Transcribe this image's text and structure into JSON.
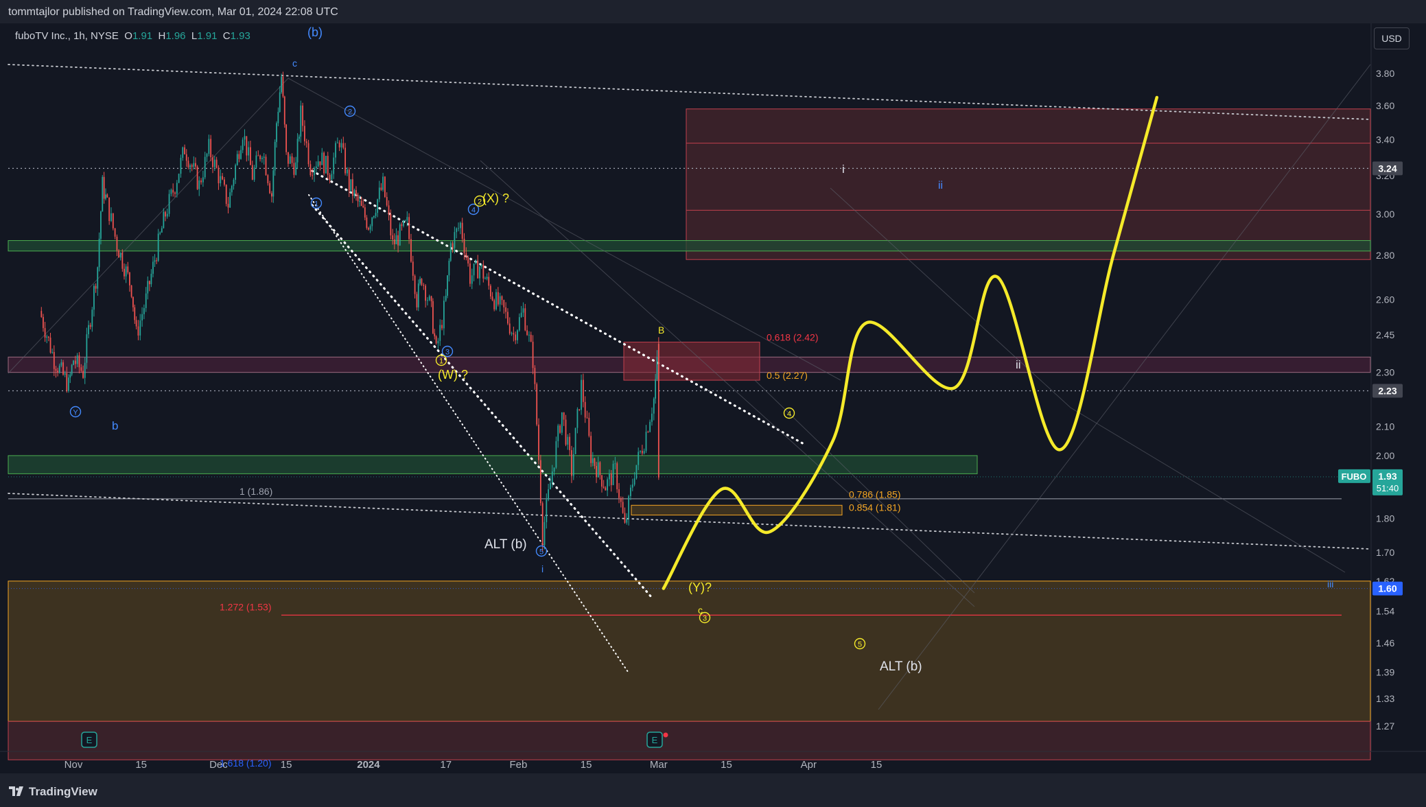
{
  "header": {
    "publisher_line": "tommtajlor published on TradingView.com, Mar 01, 2024 22:08 UTC"
  },
  "footer": {
    "brand": "TradingView"
  },
  "legend": {
    "symbol_line": "fuboTV Inc., 1h, NYSE",
    "o_label": "O",
    "o_value": "1.91",
    "h_label": "H",
    "h_value": "1.96",
    "l_label": "L",
    "l_value": "1.91",
    "c_label": "C",
    "c_value": "1.93"
  },
  "price_scale": {
    "currency": "USD"
  },
  "colors": {
    "background": "#131722",
    "up": "#26a69a",
    "down": "#ef5350",
    "wave_yellow": "#f5ea2a",
    "wave_blue": "#2962ff",
    "fib_red": "#f23645",
    "fib_orange": "#f57c00",
    "zone_green": "#4caf50",
    "zone_red": "#9c1f3a",
    "zone_orange": "#8a5a1c",
    "label_white": "#ffffff"
  },
  "chart_data": {
    "type": "candlestick",
    "interval": "1h",
    "symbol": "FUBO",
    "exchange": "NYSE",
    "x_tick_labels": [
      "Nov",
      "15",
      "Dec",
      "15",
      "2024",
      "17",
      "Feb",
      "15",
      "Mar",
      "15",
      "Apr",
      "15"
    ],
    "x_tick_dates": [
      "2023-11-01",
      "2023-11-15",
      "2023-12-01",
      "2023-12-15",
      "2024-01-01",
      "2024-01-17",
      "2024-02-01",
      "2024-02-15",
      "2024-03-01",
      "2024-03-15",
      "2024-04-01",
      "2024-04-15"
    ],
    "y_tick_labels": [
      "3.80",
      "3.60",
      "3.40",
      "3.20",
      "3.00",
      "2.80",
      "2.60",
      "2.45",
      "2.30",
      "2.10",
      "2.00",
      "1.80",
      "1.70",
      "1.62",
      "1.54",
      "1.46",
      "1.39",
      "1.33",
      "1.27"
    ],
    "y_axis_scale": "log",
    "y_range": [
      1.21,
      4.0
    ],
    "last_price": {
      "symbol_tag": "FUBO",
      "value": "1.93",
      "countdown": "51:40"
    },
    "price_markers": [
      {
        "value": "3.24",
        "style": "gray"
      },
      {
        "value": "2.23",
        "style": "gray"
      },
      {
        "value": "1.60",
        "style": "blue"
      }
    ],
    "price_path": [
      {
        "date": "2023-10-25",
        "price": 2.55
      },
      {
        "date": "2023-10-28",
        "price": 2.35
      },
      {
        "date": "2023-10-31",
        "price": 2.25
      },
      {
        "date": "2023-11-01",
        "price": 2.35
      },
      {
        "date": "2023-11-03",
        "price": 2.3
      },
      {
        "date": "2023-11-06",
        "price": 2.75
      },
      {
        "date": "2023-11-07",
        "price": 3.15
      },
      {
        "date": "2023-11-08",
        "price": 3.05
      },
      {
        "date": "2023-11-10",
        "price": 2.85
      },
      {
        "date": "2023-11-13",
        "price": 2.65
      },
      {
        "date": "2023-11-14",
        "price": 2.45
      },
      {
        "date": "2023-11-16",
        "price": 2.6
      },
      {
        "date": "2023-11-20",
        "price": 3.0
      },
      {
        "date": "2023-11-22",
        "price": 3.15
      },
      {
        "date": "2023-11-24",
        "price": 3.35
      },
      {
        "date": "2023-11-27",
        "price": 3.15
      },
      {
        "date": "2023-11-29",
        "price": 3.35
      },
      {
        "date": "2023-12-01",
        "price": 3.2
      },
      {
        "date": "2023-12-03",
        "price": 3.05
      },
      {
        "date": "2023-12-06",
        "price": 3.45
      },
      {
        "date": "2023-12-08",
        "price": 3.2
      },
      {
        "date": "2023-12-10",
        "price": 3.35
      },
      {
        "date": "2023-12-12",
        "price": 3.1
      },
      {
        "date": "2023-12-13",
        "price": 3.5
      },
      {
        "date": "2023-12-14",
        "price": 3.78
      },
      {
        "date": "2023-12-15",
        "price": 3.3
      },
      {
        "date": "2023-12-17",
        "price": 3.25
      },
      {
        "date": "2023-12-18",
        "price": 3.55
      },
      {
        "date": "2023-12-20",
        "price": 3.25
      },
      {
        "date": "2023-12-22",
        "price": 3.3
      },
      {
        "date": "2023-12-24",
        "price": 3.22
      },
      {
        "date": "2023-12-26",
        "price": 3.4
      },
      {
        "date": "2023-12-28",
        "price": 3.15
      },
      {
        "date": "2024-01-01",
        "price": 2.95
      },
      {
        "date": "2024-01-04",
        "price": 3.15
      },
      {
        "date": "2024-01-06",
        "price": 2.85
      },
      {
        "date": "2024-01-09",
        "price": 2.95
      },
      {
        "date": "2024-01-11",
        "price": 2.6
      },
      {
        "date": "2024-01-12",
        "price": 2.7
      },
      {
        "date": "2024-01-14",
        "price": 2.55
      },
      {
        "date": "2024-01-15",
        "price": 2.38
      },
      {
        "date": "2024-01-17",
        "price": 2.6
      },
      {
        "date": "2024-01-18",
        "price": 2.85
      },
      {
        "date": "2024-01-20",
        "price": 2.95
      },
      {
        "date": "2024-01-22",
        "price": 2.7
      },
      {
        "date": "2024-01-24",
        "price": 2.75
      },
      {
        "date": "2024-01-27",
        "price": 2.6
      },
      {
        "date": "2024-01-29",
        "price": 2.55
      },
      {
        "date": "2024-01-31",
        "price": 2.45
      },
      {
        "date": "2024-02-02",
        "price": 2.55
      },
      {
        "date": "2024-02-04",
        "price": 2.35
      },
      {
        "date": "2024-02-06",
        "price": 1.75
      },
      {
        "date": "2024-02-08",
        "price": 1.95
      },
      {
        "date": "2024-02-10",
        "price": 2.15
      },
      {
        "date": "2024-02-12",
        "price": 1.95
      },
      {
        "date": "2024-02-14",
        "price": 2.25
      },
      {
        "date": "2024-02-16",
        "price": 2.0
      },
      {
        "date": "2024-02-19",
        "price": 1.9
      },
      {
        "date": "2024-02-21",
        "price": 1.95
      },
      {
        "date": "2024-02-23",
        "price": 1.77
      },
      {
        "date": "2024-02-25",
        "price": 1.95
      },
      {
        "date": "2024-02-27",
        "price": 2.05
      },
      {
        "date": "2024-02-29",
        "price": 2.2
      },
      {
        "date": "2024-03-01",
        "price": 2.4
      },
      {
        "date": "2024-03-01",
        "price": 1.93
      }
    ],
    "zones": [
      {
        "from": "3.58",
        "to": "2.78",
        "style": "red-brown"
      },
      {
        "from": "2.87",
        "to": "2.82",
        "style": "green"
      },
      {
        "from": "2.36",
        "to": "2.30",
        "style": "purple"
      },
      {
        "from": "2.42",
        "to": "2.27",
        "style": "red"
      },
      {
        "from": "2.00",
        "to": "1.94",
        "style": "green"
      },
      {
        "from": "1.84",
        "to": "1.81",
        "style": "orange"
      },
      {
        "from": "1.62",
        "to": "1.28",
        "style": "orange"
      },
      {
        "from": "1.28",
        "to": "1.20",
        "style": "red-brown"
      }
    ],
    "fib_levels": [
      {
        "label": "0.618 (2.42)",
        "price": 2.42,
        "color": "red"
      },
      {
        "label": "0.5 (2.27)",
        "price": 2.27,
        "color": "orange"
      },
      {
        "label": "0.786 (1.85)",
        "price": 1.85,
        "color": "orange"
      },
      {
        "label": "0.854 (1.81)",
        "price": 1.81,
        "color": "orange"
      },
      {
        "label": "1 (1.86)",
        "price": 1.86,
        "color": "gray"
      },
      {
        "label": "1.272 (1.53)",
        "price": 1.53,
        "color": "red"
      },
      {
        "label": "1.618 (1.20)",
        "price": 1.2,
        "color": "blue"
      }
    ],
    "projection_path": [
      {
        "date": "2024-03-02",
        "price": 1.6
      },
      {
        "date": "2024-03-14",
        "price": 1.89
      },
      {
        "date": "2024-03-24",
        "price": 1.76
      },
      {
        "date": "2024-04-06",
        "price": 2.05
      },
      {
        "date": "2024-04-13",
        "price": 2.5
      },
      {
        "date": "2024-05-01",
        "price": 2.24
      },
      {
        "date": "2024-05-10",
        "price": 2.7
      },
      {
        "date": "2024-05-23",
        "price": 2.02
      },
      {
        "date": "2024-06-03",
        "price": 2.8
      },
      {
        "date": "2024-06-12",
        "price": 3.65
      }
    ],
    "wave_labels": [
      {
        "text": "(b)",
        "color": "blue"
      },
      {
        "text": "c",
        "color": "blue"
      },
      {
        "text": "b",
        "color": "blue"
      },
      {
        "text": "Y",
        "color": "blue"
      },
      {
        "text": "1",
        "color": "blue"
      },
      {
        "text": "2",
        "color": "blue"
      },
      {
        "text": "3",
        "color": "blue"
      },
      {
        "text": "4",
        "color": "blue"
      },
      {
        "text": "5",
        "color": "blue"
      },
      {
        "text": "i",
        "color": "blue"
      },
      {
        "text": "(X) ?",
        "color": "yellow"
      },
      {
        "text": "2",
        "color": "yellow"
      },
      {
        "text": "(W) ?",
        "color": "yellow"
      },
      {
        "text": "1",
        "color": "yellow"
      },
      {
        "text": "B",
        "color": "yellow"
      },
      {
        "text": "4",
        "color": "yellow"
      },
      {
        "text": "(Y)?",
        "color": "yellow"
      },
      {
        "text": "c",
        "color": "yellow"
      },
      {
        "text": "3",
        "color": "yellow"
      },
      {
        "text": "5",
        "color": "yellow"
      },
      {
        "text": "ALT (b)",
        "color": "white"
      },
      {
        "text": "ALT (b)",
        "color": "white"
      },
      {
        "text": "i",
        "color": "white"
      },
      {
        "text": "ii",
        "color": "blue"
      },
      {
        "text": "ii",
        "color": "white"
      },
      {
        "text": "iii",
        "color": "blue"
      }
    ],
    "event_markers": [
      "E",
      "E"
    ]
  }
}
